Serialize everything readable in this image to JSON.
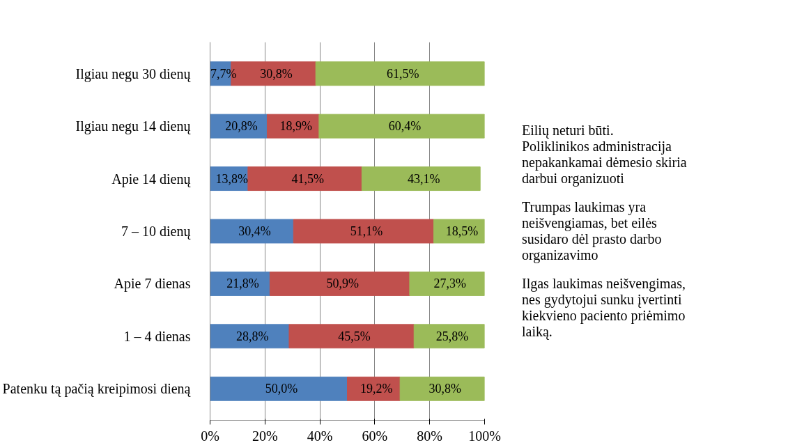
{
  "chart_data": {
    "type": "bar",
    "orientation": "horizontal",
    "stacked": true,
    "categories": [
      "Ilgiau negu 30 dienų",
      "Ilgiau negu 14 dienų",
      "Apie 14 dienų",
      "7 – 10 dienų",
      "Apie 7 dienas",
      "1 – 4 dienas",
      "Patenku tą pačią kreipimosi dieną"
    ],
    "series": [
      {
        "name": "Eilių neturi būti. Poliklinikos administracija nepakankamai dėmesio skiria darbui organizuoti",
        "color": "#4f81bd",
        "values": [
          7.7,
          20.8,
          13.8,
          30.4,
          21.8,
          28.8,
          50.0
        ],
        "value_labels": [
          "7,7%",
          "20,8%",
          "13,8%",
          "30,4%",
          "21,8%",
          "28,8%",
          "50,0%"
        ]
      },
      {
        "name": "Trumpas laukimas yra neišvengiamas, bet eilės susidaro dėl prasto darbo organizavimo",
        "color": "#c0504d",
        "values": [
          30.8,
          18.9,
          41.5,
          51.1,
          50.9,
          45.5,
          19.2
        ],
        "value_labels": [
          "30,8%",
          "18,9%",
          "41,5%",
          "51,1%",
          "50,9%",
          "45,5%",
          "19,2%"
        ]
      },
      {
        "name": "Ilgas laukimas neišvengimas, nes gydytojui sunku įvertinti kiekvieno paciento priėmimo laiką.",
        "color": "#9bbb59",
        "values": [
          61.5,
          60.4,
          43.1,
          18.5,
          27.3,
          25.8,
          30.8
        ],
        "value_labels": [
          "61,5%",
          "60,4%",
          "43,1%",
          "18,5%",
          "27,3%",
          "25,8%",
          "30,8%"
        ]
      }
    ],
    "xlim": [
      0,
      100
    ],
    "xticks": [
      {
        "value": 0,
        "label": "0%"
      },
      {
        "value": 20,
        "label": "20%"
      },
      {
        "value": 40,
        "label": "40%"
      },
      {
        "value": 60,
        "label": "60%"
      },
      {
        "value": 80,
        "label": "80%"
      },
      {
        "value": 100,
        "label": "100%"
      }
    ],
    "grid": "x",
    "legend": "right"
  }
}
